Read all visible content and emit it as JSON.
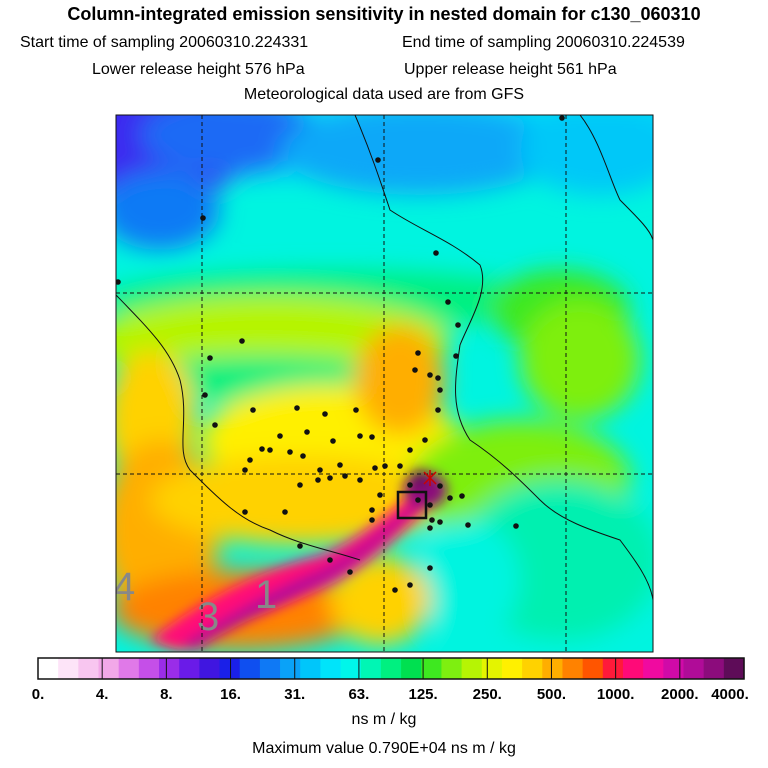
{
  "header": {
    "title": "Column-integrated emission sensitivity in nested domain for c130_060310",
    "sampling_start": "Start time of sampling 20060310.224331",
    "sampling_end": "End time of sampling 20060310.224539",
    "release_lower": "Lower release height  576 hPa",
    "release_upper": "Upper release height  561 hPa",
    "met_source": "Meteorological data used are from GFS"
  },
  "chart_data": {
    "type": "heatmap",
    "title": "Column-integrated emission sensitivity in nested domain for c130_060310",
    "colorbar": {
      "units": "ns m / kg",
      "scale": "log",
      "tick_labels": [
        "0.",
        "4.",
        "8.",
        "16.",
        "31.",
        "63.",
        "125.",
        "250.",
        "500.",
        "1000.",
        "2000.",
        "4000."
      ],
      "colors": [
        "#ffffff",
        "#fde4f8",
        "#f8c6f0",
        "#f2a8e8",
        "#e079e8",
        "#c54fe8",
        "#9a2de8",
        "#6a1be8",
        "#4016e0",
        "#1a20e8",
        "#0f4ff0",
        "#0f79f5",
        "#0aa2f8",
        "#00c6fa",
        "#00e4fa",
        "#00f6ea",
        "#00f6b4",
        "#00f080",
        "#00e050",
        "#3ee820",
        "#7eef10",
        "#b6f404",
        "#e4f400",
        "#fff000",
        "#ffd200",
        "#ffae00",
        "#ff8200",
        "#ff5500",
        "#ff1a3a",
        "#ff0a78",
        "#f00aa0",
        "#d00aa8",
        "#b00c98",
        "#8c0c7c",
        "#5e0c58"
      ]
    },
    "maximum_value": "Maximum value  0.790E+04 ns m / kg",
    "time_labels": [
      "4",
      "3",
      "1"
    ],
    "release_point": "star near domain center",
    "features": [
      "dashed lat/lon grid",
      "coastlines",
      "black dots: population centres / flight markers",
      "box around receptor"
    ]
  }
}
